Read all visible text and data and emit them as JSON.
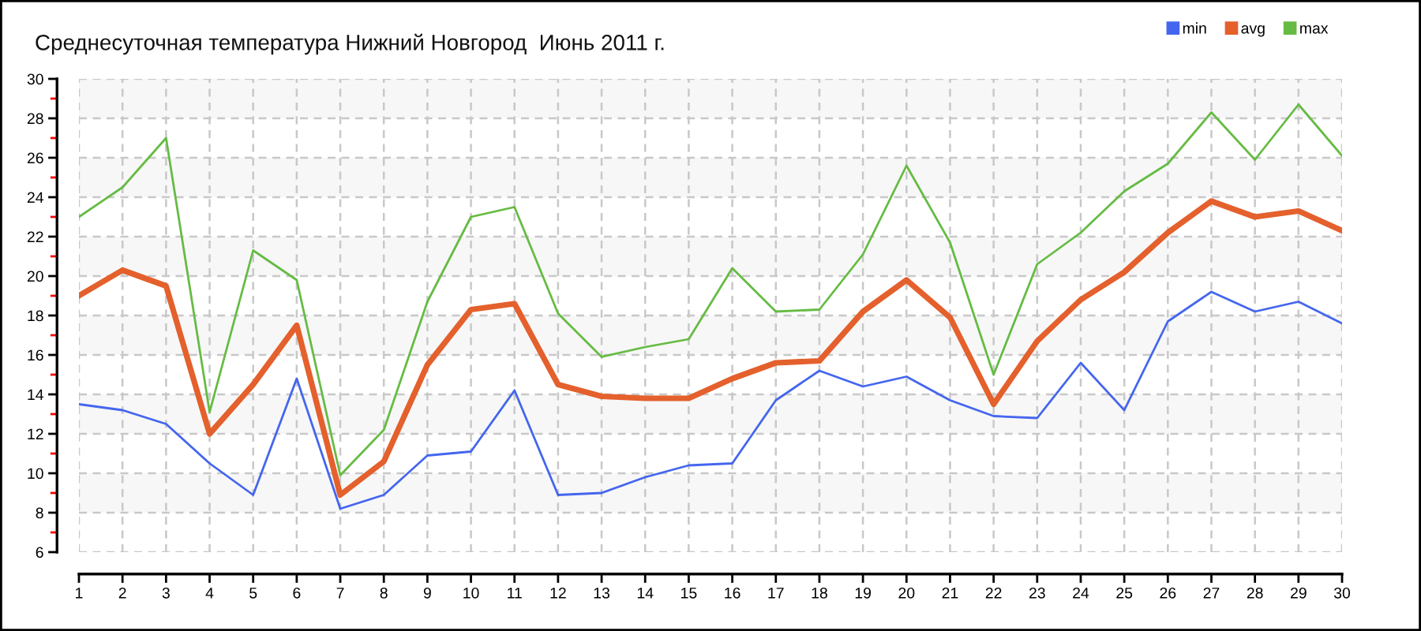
{
  "chart_data": {
    "type": "line",
    "title": "Среднесуточная температура Нижний Новгород  Июнь 2011 г.",
    "x": [
      1,
      2,
      3,
      4,
      5,
      6,
      7,
      8,
      9,
      10,
      11,
      12,
      13,
      14,
      15,
      16,
      17,
      18,
      19,
      20,
      21,
      22,
      23,
      24,
      25,
      26,
      27,
      28,
      29,
      30
    ],
    "xlim": [
      1,
      30
    ],
    "xticks": [
      1,
      2,
      3,
      4,
      5,
      6,
      7,
      8,
      9,
      10,
      11,
      12,
      13,
      14,
      15,
      16,
      17,
      18,
      19,
      20,
      21,
      22,
      23,
      24,
      25,
      26,
      27,
      28,
      29,
      30
    ],
    "ylim": [
      6,
      30
    ],
    "yticks": [
      6,
      {
        "value": 7,
        "label": null
      },
      8,
      {
        "value": 9,
        "label": null
      },
      10,
      {
        "value": 11,
        "label": null
      },
      12,
      {
        "value": 13,
        "label": null
      },
      14,
      {
        "value": 15,
        "label": null
      },
      16,
      {
        "value": 17,
        "label": null
      },
      18,
      {
        "value": 19,
        "label": null
      },
      20,
      {
        "value": 21,
        "label": null
      },
      22,
      {
        "value": 23,
        "label": null
      },
      24,
      {
        "value": 25,
        "label": null
      },
      26,
      {
        "value": 27,
        "label": null
      },
      28,
      {
        "value": 29,
        "label": null
      },
      30
    ],
    "grid": true,
    "legend": "top right",
    "bands": [
      {
        "axis": "y",
        "from": 8,
        "to": 10,
        "color": "#f7f7f7"
      },
      {
        "axis": "y",
        "from": 12,
        "to": 14,
        "color": "#f7f7f7"
      },
      {
        "axis": "y",
        "from": 16,
        "to": 18,
        "color": "#f7f7f7"
      },
      {
        "axis": "y",
        "from": 20,
        "to": 22,
        "color": "#f7f7f7"
      },
      {
        "axis": "y",
        "from": 24,
        "to": 26,
        "color": "#f7f7f7"
      },
      {
        "axis": "y",
        "from": 28,
        "to": 30,
        "color": "#f7f7f7"
      }
    ],
    "series": [
      {
        "name": "min",
        "color": "#4466ee",
        "values": [
          13.5,
          13.2,
          12.5,
          10.5,
          8.9,
          14.8,
          8.2,
          8.9,
          10.9,
          11.1,
          14.2,
          8.9,
          9.0,
          9.8,
          10.4,
          10.5,
          13.7,
          15.2,
          14.4,
          14.9,
          13.7,
          12.9,
          12.8,
          15.6,
          13.2,
          17.7,
          19.2,
          18.2,
          18.7,
          17.6
        ]
      },
      {
        "name": "avg",
        "color": "#e4602c",
        "values": [
          19.0,
          20.3,
          19.5,
          12.0,
          14.5,
          17.5,
          8.9,
          10.6,
          15.5,
          18.3,
          18.6,
          14.5,
          13.9,
          13.8,
          13.8,
          14.8,
          15.6,
          15.7,
          18.2,
          19.8,
          17.9,
          13.5,
          16.7,
          18.8,
          20.2,
          22.2,
          23.8,
          23.0,
          23.3,
          22.3
        ]
      },
      {
        "name": "max",
        "color": "#66bb44",
        "values": [
          23.0,
          24.5,
          27.0,
          13.1,
          21.3,
          19.8,
          9.9,
          12.2,
          18.7,
          23.0,
          23.5,
          18.1,
          15.9,
          16.4,
          16.8,
          20.4,
          18.2,
          18.3,
          21.1,
          25.6,
          21.7,
          15.0,
          20.6,
          22.2,
          24.3,
          25.7,
          28.3,
          25.9,
          28.7,
          26.1
        ]
      }
    ]
  }
}
